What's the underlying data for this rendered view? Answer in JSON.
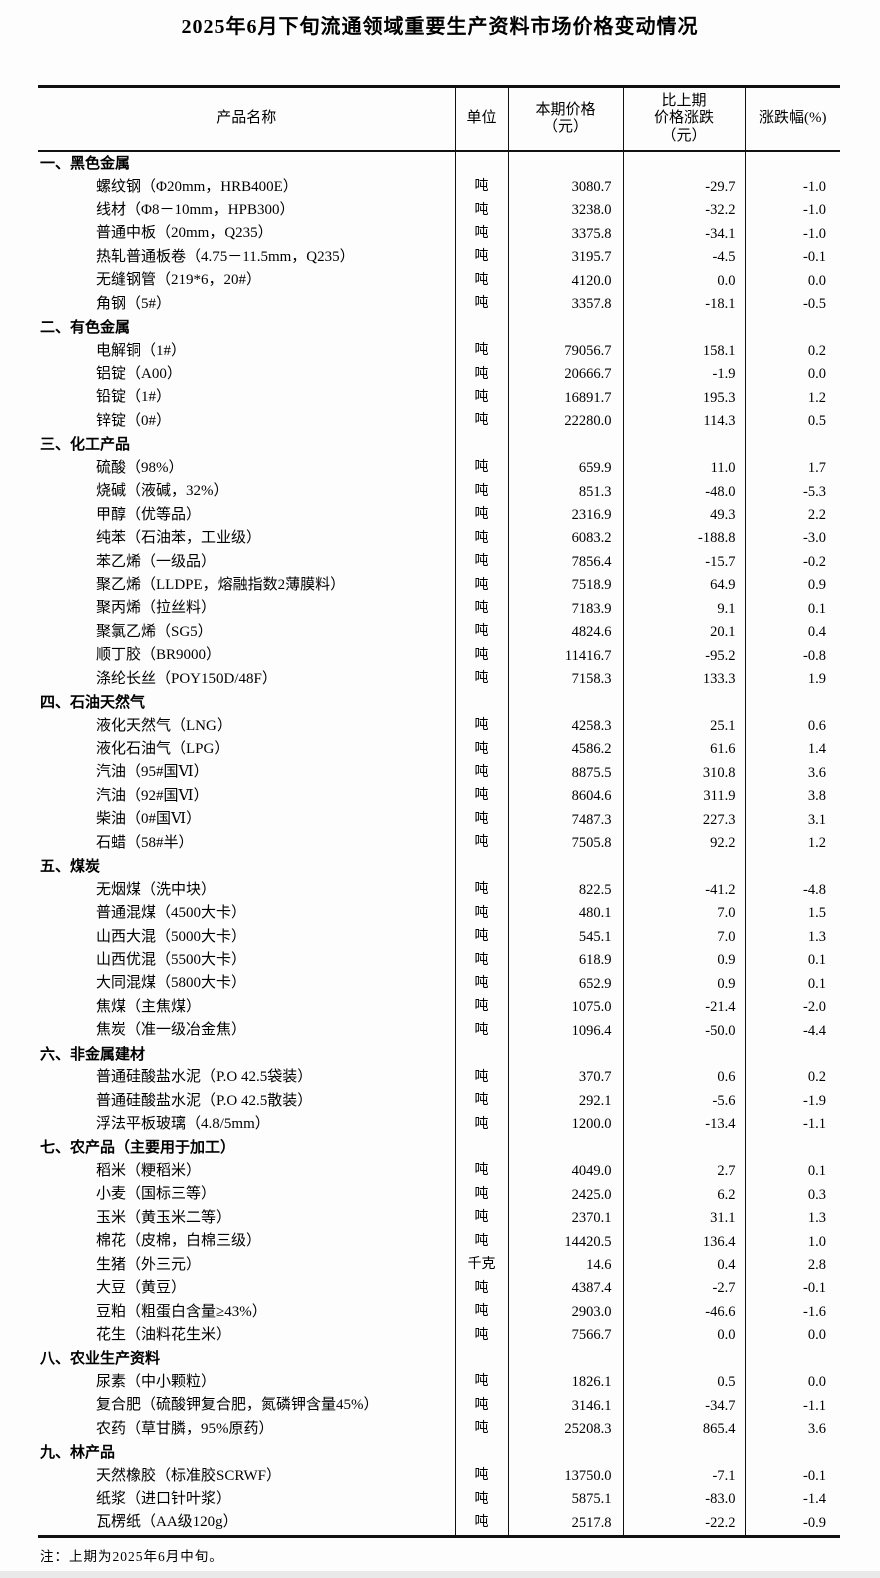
{
  "title": "2025年6月下旬流通领域重要生产资料市场价格变动情况",
  "note": "注：上期为2025年6月中旬。",
  "table": {
    "columns": [
      "产品名称",
      "单位",
      "本期价格\n（元）",
      "比上期\n价格涨跌\n（元）",
      "涨跌幅(%)"
    ],
    "sections": [
      {
        "name": "一、黑色金属",
        "items": [
          {
            "product": "螺纹钢（Φ20mm，HRB400E）",
            "unit": "吨",
            "price": "3080.7",
            "change": "-29.7",
            "pct": "-1.0"
          },
          {
            "product": "线材（Φ8－10mm，HPB300）",
            "unit": "吨",
            "price": "3238.0",
            "change": "-32.2",
            "pct": "-1.0"
          },
          {
            "product": "普通中板（20mm，Q235）",
            "unit": "吨",
            "price": "3375.8",
            "change": "-34.1",
            "pct": "-1.0"
          },
          {
            "product": "热轧普通板卷（4.75－11.5mm，Q235）",
            "unit": "吨",
            "price": "3195.7",
            "change": "-4.5",
            "pct": "-0.1"
          },
          {
            "product": "无缝钢管（219*6，20#）",
            "unit": "吨",
            "price": "4120.0",
            "change": "0.0",
            "pct": "0.0"
          },
          {
            "product": "角钢（5#）",
            "unit": "吨",
            "price": "3357.8",
            "change": "-18.1",
            "pct": "-0.5"
          }
        ]
      },
      {
        "name": "二、有色金属",
        "items": [
          {
            "product": "电解铜（1#）",
            "unit": "吨",
            "price": "79056.7",
            "change": "158.1",
            "pct": "0.2"
          },
          {
            "product": "铝锭（A00）",
            "unit": "吨",
            "price": "20666.7",
            "change": "-1.9",
            "pct": "0.0"
          },
          {
            "product": "铅锭（1#）",
            "unit": "吨",
            "price": "16891.7",
            "change": "195.3",
            "pct": "1.2"
          },
          {
            "product": "锌锭（0#）",
            "unit": "吨",
            "price": "22280.0",
            "change": "114.3",
            "pct": "0.5"
          }
        ]
      },
      {
        "name": "三、化工产品",
        "items": [
          {
            "product": "硫酸（98%）",
            "unit": "吨",
            "price": "659.9",
            "change": "11.0",
            "pct": "1.7"
          },
          {
            "product": "烧碱（液碱，32%）",
            "unit": "吨",
            "price": "851.3",
            "change": "-48.0",
            "pct": "-5.3"
          },
          {
            "product": "甲醇（优等品）",
            "unit": "吨",
            "price": "2316.9",
            "change": "49.3",
            "pct": "2.2"
          },
          {
            "product": "纯苯（石油苯，工业级）",
            "unit": "吨",
            "price": "6083.2",
            "change": "-188.8",
            "pct": "-3.0"
          },
          {
            "product": "苯乙烯（一级品）",
            "unit": "吨",
            "price": "7856.4",
            "change": "-15.7",
            "pct": "-0.2"
          },
          {
            "product": "聚乙烯（LLDPE，熔融指数2薄膜料）",
            "unit": "吨",
            "price": "7518.9",
            "change": "64.9",
            "pct": "0.9"
          },
          {
            "product": "聚丙烯（拉丝料）",
            "unit": "吨",
            "price": "7183.9",
            "change": "9.1",
            "pct": "0.1"
          },
          {
            "product": "聚氯乙烯（SG5）",
            "unit": "吨",
            "price": "4824.6",
            "change": "20.1",
            "pct": "0.4"
          },
          {
            "product": "顺丁胶（BR9000）",
            "unit": "吨",
            "price": "11416.7",
            "change": "-95.2",
            "pct": "-0.8"
          },
          {
            "product": "涤纶长丝（POY150D/48F）",
            "unit": "吨",
            "price": "7158.3",
            "change": "133.3",
            "pct": "1.9"
          }
        ]
      },
      {
        "name": "四、石油天然气",
        "items": [
          {
            "product": "液化天然气（LNG）",
            "unit": "吨",
            "price": "4258.3",
            "change": "25.1",
            "pct": "0.6"
          },
          {
            "product": "液化石油气（LPG）",
            "unit": "吨",
            "price": "4586.2",
            "change": "61.6",
            "pct": "1.4"
          },
          {
            "product": "汽油（95#国Ⅵ）",
            "unit": "吨",
            "price": "8875.5",
            "change": "310.8",
            "pct": "3.6"
          },
          {
            "product": "汽油（92#国Ⅵ）",
            "unit": "吨",
            "price": "8604.6",
            "change": "311.9",
            "pct": "3.8"
          },
          {
            "product": "柴油（0#国Ⅵ）",
            "unit": "吨",
            "price": "7487.3",
            "change": "227.3",
            "pct": "3.1"
          },
          {
            "product": "石蜡（58#半）",
            "unit": "吨",
            "price": "7505.8",
            "change": "92.2",
            "pct": "1.2"
          }
        ]
      },
      {
        "name": "五、煤炭",
        "items": [
          {
            "product": "无烟煤（洗中块）",
            "unit": "吨",
            "price": "822.5",
            "change": "-41.2",
            "pct": "-4.8"
          },
          {
            "product": "普通混煤（4500大卡）",
            "unit": "吨",
            "price": "480.1",
            "change": "7.0",
            "pct": "1.5"
          },
          {
            "product": "山西大混（5000大卡）",
            "unit": "吨",
            "price": "545.1",
            "change": "7.0",
            "pct": "1.3"
          },
          {
            "product": "山西优混（5500大卡）",
            "unit": "吨",
            "price": "618.9",
            "change": "0.9",
            "pct": "0.1"
          },
          {
            "product": "大同混煤（5800大卡）",
            "unit": "吨",
            "price": "652.9",
            "change": "0.9",
            "pct": "0.1"
          },
          {
            "product": "焦煤（主焦煤）",
            "unit": "吨",
            "price": "1075.0",
            "change": "-21.4",
            "pct": "-2.0"
          },
          {
            "product": "焦炭（准一级冶金焦）",
            "unit": "吨",
            "price": "1096.4",
            "change": "-50.0",
            "pct": "-4.4"
          }
        ]
      },
      {
        "name": "六、非金属建材",
        "items": [
          {
            "product": "普通硅酸盐水泥（P.O 42.5袋装）",
            "unit": "吨",
            "price": "370.7",
            "change": "0.6",
            "pct": "0.2"
          },
          {
            "product": "普通硅酸盐水泥（P.O 42.5散装）",
            "unit": "吨",
            "price": "292.1",
            "change": "-5.6",
            "pct": "-1.9"
          },
          {
            "product": "浮法平板玻璃（4.8/5mm）",
            "unit": "吨",
            "price": "1200.0",
            "change": "-13.4",
            "pct": "-1.1"
          }
        ]
      },
      {
        "name": "七、农产品（主要用于加工）",
        "items": [
          {
            "product": "稻米（粳稻米）",
            "unit": "吨",
            "price": "4049.0",
            "change": "2.7",
            "pct": "0.1"
          },
          {
            "product": "小麦（国标三等）",
            "unit": "吨",
            "price": "2425.0",
            "change": "6.2",
            "pct": "0.3"
          },
          {
            "product": "玉米（黄玉米二等）",
            "unit": "吨",
            "price": "2370.1",
            "change": "31.1",
            "pct": "1.3"
          },
          {
            "product": "棉花（皮棉，白棉三级）",
            "unit": "吨",
            "price": "14420.5",
            "change": "136.4",
            "pct": "1.0"
          },
          {
            "product": "生猪（外三元）",
            "unit": "千克",
            "price": "14.6",
            "change": "0.4",
            "pct": "2.8"
          },
          {
            "product": "大豆（黄豆）",
            "unit": "吨",
            "price": "4387.4",
            "change": "-2.7",
            "pct": "-0.1"
          },
          {
            "product": "豆粕（粗蛋白含量≥43%）",
            "unit": "吨",
            "price": "2903.0",
            "change": "-46.6",
            "pct": "-1.6"
          },
          {
            "product": "花生（油料花生米）",
            "unit": "吨",
            "price": "7566.7",
            "change": "0.0",
            "pct": "0.0"
          }
        ]
      },
      {
        "name": "八、农业生产资料",
        "items": [
          {
            "product": "尿素（中小颗粒）",
            "unit": "吨",
            "price": "1826.1",
            "change": "0.5",
            "pct": "0.0"
          },
          {
            "product": "复合肥（硫酸钾复合肥，氮磷钾含量45%）",
            "unit": "吨",
            "price": "3146.1",
            "change": "-34.7",
            "pct": "-1.1"
          },
          {
            "product": "农药（草甘膦，95%原药）",
            "unit": "吨",
            "price": "25208.3",
            "change": "865.4",
            "pct": "3.6"
          }
        ]
      },
      {
        "name": "九、林产品",
        "items": [
          {
            "product": "天然橡胶（标准胶SCRWF）",
            "unit": "吨",
            "price": "13750.0",
            "change": "-7.1",
            "pct": "-0.1"
          },
          {
            "product": "纸浆（进口针叶浆）",
            "unit": "吨",
            "price": "5875.1",
            "change": "-83.0",
            "pct": "-1.4"
          },
          {
            "product": "瓦楞纸（AA级120g）",
            "unit": "吨",
            "price": "2517.8",
            "change": "-22.2",
            "pct": "-0.9"
          }
        ]
      }
    ]
  }
}
